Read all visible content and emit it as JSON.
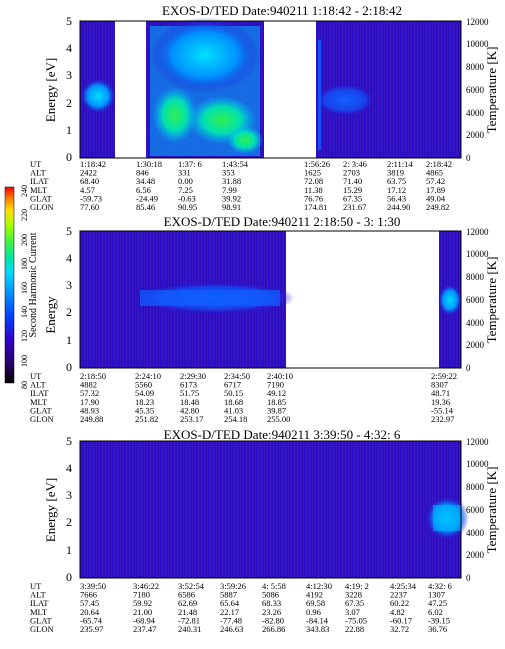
{
  "panels": [
    {
      "title": "EXOS-D/TED   Date:940211   1:18:42 - 2:18:42",
      "ylabel_left": "Energy [eV]",
      "ylabel_right": "Temperature [K]",
      "yticks_left": [
        "0",
        "1",
        "2",
        "3",
        "4",
        "5"
      ],
      "yticks_right": [
        "0",
        "2000",
        "4000",
        "6000",
        "8000",
        "10000",
        "12000"
      ],
      "row_labels": [
        "UT",
        "ALT",
        "ILAT",
        "MLT",
        "GLAT",
        "GLON"
      ],
      "columns": [
        {
          "UT": "1:18:42",
          "ALT": "2422",
          "ILAT": "68.40",
          "MLT": "4.57",
          "GLAT": "-59.73",
          "GLON": "77.60"
        },
        {
          "UT": "1:30:18",
          "ALT": "846",
          "ILAT": "34.48",
          "MLT": "6.56",
          "GLAT": "-24.49",
          "GLON": "85.46"
        },
        {
          "UT": "1:37: 6",
          "ALT": "331",
          "ILAT": "0.00",
          "MLT": "7.25",
          "GLAT": "-0.63",
          "GLON": "90.95"
        },
        {
          "UT": "1:43:54",
          "ALT": "353",
          "ILAT": "31.88",
          "MLT": "7.99",
          "GLAT": "39.92",
          "GLON": "98.91"
        },
        {
          "UT": "1:56:26",
          "ALT": "1625",
          "ILAT": "72.08",
          "MLT": "11.38",
          "GLAT": "76.76",
          "GLON": "174.81"
        },
        {
          "UT": "2: 3:46",
          "ALT": "2703",
          "ILAT": "71.40",
          "MLT": "15.29",
          "GLAT": "67.35",
          "GLON": "231.67"
        },
        {
          "UT": "2:11:14",
          "ALT": "3819",
          "ILAT": "63.75",
          "MLT": "17.12",
          "GLAT": "56.43",
          "GLON": "244.90"
        },
        {
          "UT": "2:18:42",
          "ALT": "4865",
          "ILAT": "57.42",
          "MLT": "17.89",
          "GLAT": "49.04",
          "GLON": "249.82"
        }
      ]
    },
    {
      "title": "EXOS-D/TED   Date:940211   2:18:50 - 3: 1:30",
      "ylabel_left": "Energy",
      "ylabel_right": "Temperature [K]",
      "yticks_left": [
        "0",
        "1",
        "2",
        "3",
        "4",
        "5"
      ],
      "yticks_right": [
        "0",
        "2000",
        "4000",
        "6000",
        "8000",
        "10000",
        "12000"
      ],
      "row_labels": [
        "UT",
        "ALT",
        "ILAT",
        "MLT",
        "GLAT",
        "GLON"
      ],
      "columns": [
        {
          "UT": "2:18:50",
          "ALT": "4882",
          "ILAT": "57.32",
          "MLT": "17.90",
          "GLAT": "48.93",
          "GLON": "249.88"
        },
        {
          "UT": "2:24:10",
          "ALT": "5560",
          "ILAT": "54.09",
          "MLT": "18.23",
          "GLAT": "45.35",
          "GLON": "251.82"
        },
        {
          "UT": "2:29:30",
          "ALT": "6173",
          "ILAT": "51.75",
          "MLT": "18.48",
          "GLAT": "42.80",
          "GLON": "253.17"
        },
        {
          "UT": "2:34:50",
          "ALT": "6717",
          "ILAT": "50.15",
          "MLT": "18.68",
          "GLAT": "41.03",
          "GLON": "254.18"
        },
        {
          "UT": "2:40:10",
          "ALT": "7190",
          "ILAT": "49.12",
          "MLT": "18.85",
          "GLAT": "39.87",
          "GLON": "255.00"
        },
        {
          "UT": "2:59:22",
          "ALT": "8307",
          "ILAT": "48.71",
          "MLT": "19.36",
          "GLAT": "-55.14",
          "GLON": "232.97"
        }
      ]
    },
    {
      "title": "EXOS-D/TED   Date:940211   3:39:50 - 4:32: 6",
      "ylabel_left": "Energy [eV]",
      "ylabel_right": "Temperature [K]",
      "yticks_left": [
        "0",
        "1",
        "2",
        "3",
        "4",
        "5"
      ],
      "yticks_right": [
        "0",
        "2000",
        "4000",
        "6000",
        "8000",
        "10000",
        "12000"
      ],
      "row_labels": [
        "UT",
        "ALT",
        "ILAT",
        "MLT",
        "GLAT",
        "GLON"
      ],
      "columns": [
        {
          "UT": "3:39:50",
          "ALT": "7666",
          "ILAT": "57.45",
          "MLT": "20.64",
          "GLAT": "-65.74",
          "GLON": "235.97"
        },
        {
          "UT": "3:46:22",
          "ALT": "7180",
          "ILAT": "59.92",
          "MLT": "21.00",
          "GLAT": "-68.94",
          "GLON": "237.47"
        },
        {
          "UT": "3:52:54",
          "ALT": "6586",
          "ILAT": "62.69",
          "MLT": "21.48",
          "GLAT": "-72.81",
          "GLON": "240.31"
        },
        {
          "UT": "3:59:26",
          "ALT": "5887",
          "ILAT": "65.64",
          "MLT": "22.17",
          "GLAT": "-77.48",
          "GLON": "246.63"
        },
        {
          "UT": "4: 5:58",
          "ALT": "5086",
          "ILAT": "68.33",
          "MLT": "23.26",
          "GLAT": "-82.80",
          "GLON": "266.86"
        },
        {
          "UT": "4:12:30",
          "ALT": "4192",
          "ILAT": "69.58",
          "MLT": "0.96",
          "GLAT": "-84.14",
          "GLON": "343.83"
        },
        {
          "UT": "4:19: 2",
          "ALT": "3228",
          "ILAT": "67.35",
          "MLT": "3.07",
          "GLAT": "-75.05",
          "GLON": "22.88"
        },
        {
          "UT": "4:25:34",
          "ALT": "2237",
          "ILAT": "60.22",
          "MLT": "4.82",
          "GLAT": "-60.17",
          "GLON": "32.72"
        },
        {
          "UT": "4:32: 6",
          "ALT": "1307",
          "ILAT": "47.25",
          "MLT": "6.02",
          "GLAT": "-39.15",
          "GLON": "36.76"
        }
      ]
    }
  ],
  "colorbar": {
    "label": "Second Harmonic Current",
    "ticks": [
      "80",
      "100",
      "120",
      "140",
      "160",
      "180",
      "200",
      "220",
      "240"
    ],
    "colors": [
      "#000000",
      "#2a006a",
      "#3300cc",
      "#0040ff",
      "#0090ff",
      "#00d8ff",
      "#00e8a0",
      "#40f040",
      "#a0ff00",
      "#ffe000",
      "#ff8000",
      "#ff0000"
    ]
  },
  "chart_data": [
    {
      "type": "heatmap",
      "title": "EXOS-D/TED   Date:940211   1:18:42 - 2:18:42",
      "ylabel": "Energy [eV]",
      "ylabel_right": "Temperature [K]",
      "ylim": [
        0,
        5
      ],
      "ylim_right": [
        0,
        12000
      ],
      "x_ticks": [
        "1:18:42",
        "1:30:18",
        "1:37: 6",
        "1:43:54",
        "1:56:26",
        "2: 3:46",
        "2:11:14",
        "2:18:42"
      ],
      "colorbar_range": [
        80,
        240
      ],
      "data_gaps": [
        "~1:22 - ~1:27",
        "~1:47 - ~1:56"
      ],
      "features": [
        {
          "x_range": [
            "1:18:42",
            "1:22"
          ],
          "energy_band": [
            1.8,
            3.0
          ],
          "level": "cyan"
        },
        {
          "x_range": [
            "1:27",
            "1:47"
          ],
          "energy_band": [
            0.5,
            5.0
          ],
          "level": "cyan-green"
        },
        {
          "x_range": [
            "1:56:26",
            "2: 3:46"
          ],
          "energy_band": [
            1.5,
            3.0
          ],
          "level": "blue"
        }
      ]
    },
    {
      "type": "heatmap",
      "title": "EXOS-D/TED   Date:940211   2:18:50 - 3: 1:30",
      "ylabel": "Energy",
      "ylabel_right": "Temperature [K]",
      "ylim": [
        0,
        5
      ],
      "ylim_right": [
        0,
        12000
      ],
      "x_ticks": [
        "2:18:50",
        "2:24:10",
        "2:29:30",
        "2:34:50",
        "2:40:10",
        "2:59:22"
      ],
      "colorbar_range": [
        80,
        240
      ],
      "data_gaps": [
        "~2:43 - ~2:58"
      ],
      "features": [
        {
          "x_range": [
            "2:24",
            "2:43"
          ],
          "energy_band": [
            2.0,
            3.2
          ],
          "level": "blue"
        },
        {
          "x_range": [
            "2:59",
            "3: 1:30"
          ],
          "energy_band": [
            2.0,
            3.0
          ],
          "level": "blue"
        }
      ]
    },
    {
      "type": "heatmap",
      "title": "EXOS-D/TED   Date:940211   3:39:50 - 4:32: 6",
      "ylabel": "Energy [eV]",
      "ylabel_right": "Temperature [K]",
      "ylim": [
        0,
        5
      ],
      "ylim_right": [
        0,
        12000
      ],
      "x_ticks": [
        "3:39:50",
        "3:46:22",
        "3:52:54",
        "3:59:26",
        "4: 5:58",
        "4:12:30",
        "4:19: 2",
        "4:25:34",
        "4:32: 6"
      ],
      "colorbar_range": [
        80,
        240
      ],
      "features": [
        {
          "x_range": [
            "4:26",
            "4:32: 6"
          ],
          "energy_band": [
            1.5,
            3.0
          ],
          "level": "blue-cyan"
        }
      ]
    }
  ]
}
